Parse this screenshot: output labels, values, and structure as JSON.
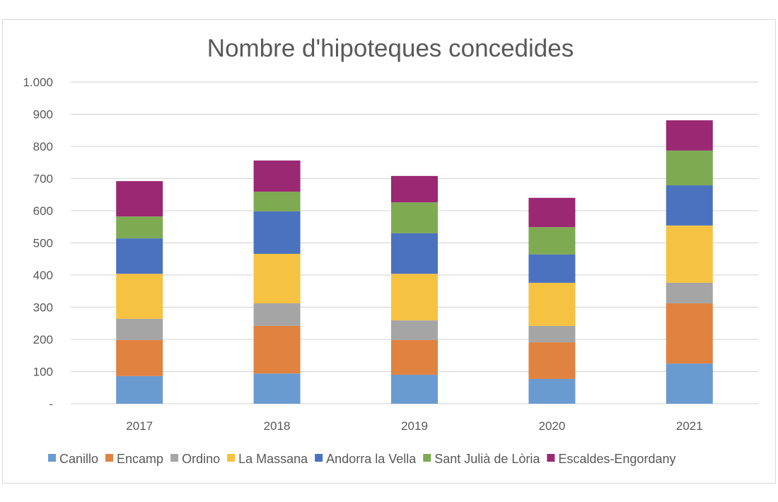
{
  "chart_data": {
    "type": "bar",
    "stacked": true,
    "title": "Nombre d'hipoteques concedides",
    "xlabel": "",
    "ylabel": "",
    "categories": [
      "2017",
      "2018",
      "2019",
      "2020",
      "2021"
    ],
    "ylim": [
      0,
      1000
    ],
    "yticks": [
      0,
      100,
      200,
      300,
      400,
      500,
      600,
      700,
      800,
      900,
      1000
    ],
    "ytick_labels": [
      "-",
      "100",
      "200",
      "300",
      "400",
      "500",
      "600",
      "700",
      "800",
      "900",
      "1.000"
    ],
    "grid": true,
    "legend_position": "bottom",
    "series": [
      {
        "name": "Canillo",
        "color": "#6a9bd0",
        "values": [
          86,
          94,
          90,
          77,
          125
        ]
      },
      {
        "name": "Encamp",
        "color": "#e08240",
        "values": [
          112,
          148,
          108,
          114,
          187
        ]
      },
      {
        "name": "Ordino",
        "color": "#a5a5a5",
        "values": [
          66,
          70,
          61,
          51,
          64
        ]
      },
      {
        "name": "La Massana",
        "color": "#f5c242",
        "values": [
          140,
          154,
          145,
          134,
          178
        ]
      },
      {
        "name": "Andorra la Vella",
        "color": "#4a72bf",
        "values": [
          110,
          132,
          126,
          88,
          125
        ]
      },
      {
        "name": "Sant Julià de Lòria",
        "color": "#7eaa52",
        "values": [
          68,
          61,
          96,
          85,
          108
        ]
      },
      {
        "name": "Escaldes-Engordany",
        "color": "#9b2873",
        "values": [
          110,
          97,
          82,
          91,
          94
        ]
      }
    ]
  }
}
